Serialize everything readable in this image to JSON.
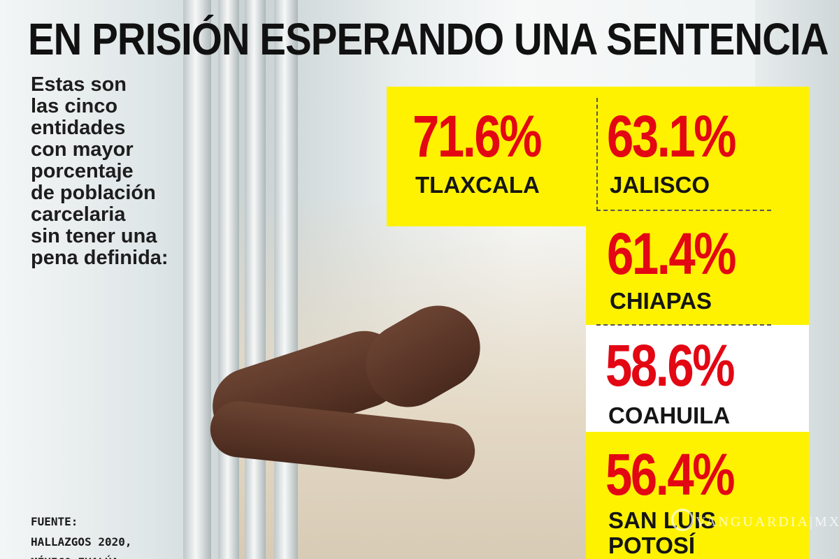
{
  "title": "EN PRISIÓN ESPERANDO UNA SENTENCIA",
  "intro_lines": [
    "Estas son",
    "las cinco",
    "entidades",
    "con mayor",
    "porcentaje",
    "de población",
    "carcelaria",
    "sin tener una",
    "pena definida:"
  ],
  "source_lines": [
    "FUENTE:",
    "HALLAZGOS 2020,",
    "MÉXICO EVALÚA"
  ],
  "stats": [
    {
      "value": "71.6%",
      "state": "TLAXCALA"
    },
    {
      "value": "63.1%",
      "state": "JALISCO"
    },
    {
      "value": "61.4%",
      "state": "CHIAPAS"
    },
    {
      "value": "58.6%",
      "state": "COAHUILA"
    },
    {
      "value": "56.4%",
      "state_lines": [
        "SAN LUIS",
        "POTOSÍ"
      ]
    }
  ],
  "watermark": "VANGUARDIA|MX",
  "colors": {
    "yellow": "#fff200",
    "red": "#e30613",
    "text": "#111111"
  }
}
